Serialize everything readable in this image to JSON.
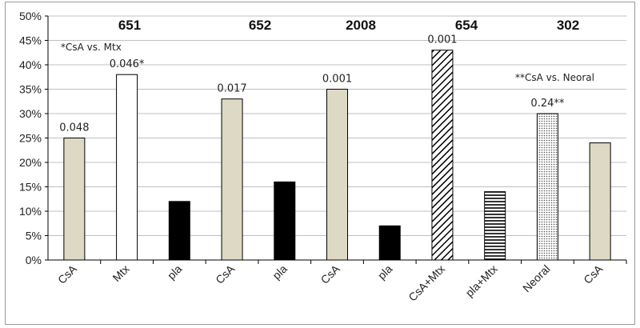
{
  "chart_data": {
    "type": "bar",
    "ylim": [
      0,
      50
    ],
    "y_ticks": [
      "0%",
      "5%",
      "10%",
      "15%",
      "20%",
      "25%",
      "30%",
      "35%",
      "40%",
      "45%",
      "50%"
    ],
    "grid": true,
    "categories": [
      "CsA",
      "Mtx",
      "pla",
      "CsA",
      "pla",
      "CsA",
      "pla",
      "CsA+Mtx",
      "pla+Mtx",
      "Neoral",
      "CsA"
    ],
    "values": [
      25,
      38,
      12,
      33,
      16,
      35,
      7,
      43,
      14,
      30,
      24
    ],
    "bar_patterns": [
      "tan",
      "white",
      "black",
      "tan",
      "black",
      "tan",
      "black",
      "diagonal",
      "horizontal",
      "dotted",
      "tan"
    ],
    "data_labels": [
      "0.048",
      "0.046*",
      "",
      "0.017",
      "",
      "0.001",
      "",
      "0.001",
      "",
      "0.24**",
      ""
    ],
    "groups": [
      {
        "label": "651",
        "from": 0,
        "to": 2
      },
      {
        "label": "652",
        "from": 3,
        "to": 4
      },
      {
        "label": "2008",
        "from": 5,
        "to": 6
      },
      {
        "label": "654",
        "from": 7,
        "to": 8
      },
      {
        "label": "302",
        "from": 9,
        "to": 10
      }
    ],
    "annotations": [
      "*CsA vs. Mtx",
      "**CsA vs. Neoral"
    ],
    "colors": {
      "tan": "#ddd9c4",
      "black": "#000000",
      "white": "#ffffff",
      "grid": "#c0c0c0",
      "outline": "#000000"
    }
  }
}
